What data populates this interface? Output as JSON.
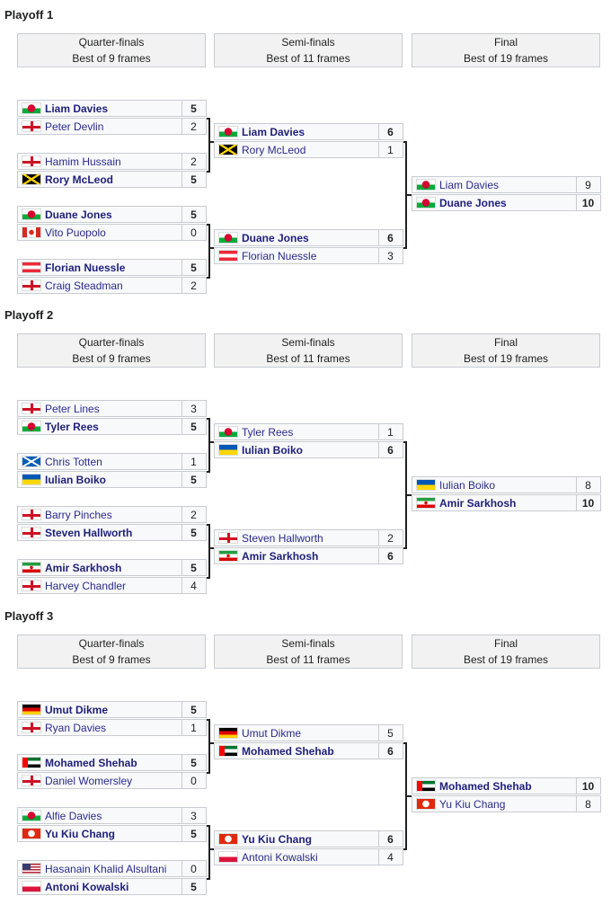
{
  "playoffs": [
    {
      "title": "Playoff 1",
      "rounds": [
        {
          "name": "Quarter-finals",
          "format": "Best of 9 frames"
        },
        {
          "name": "Semi-finals",
          "format": "Best of 11 frames"
        },
        {
          "name": "Final",
          "format": "Best of 19 frames"
        }
      ],
      "quarterfinals": [
        [
          {
            "name": "Liam Davies",
            "flag": "WAL",
            "score": "5",
            "winner": true
          },
          {
            "name": "Peter Devlin",
            "flag": "ENG",
            "score": "2",
            "winner": false
          }
        ],
        [
          {
            "name": "Hamim Hussain",
            "flag": "ENG",
            "score": "2",
            "winner": false
          },
          {
            "name": "Rory McLeod",
            "flag": "JAM",
            "score": "5",
            "winner": true
          }
        ],
        [
          {
            "name": "Duane Jones",
            "flag": "WAL",
            "score": "5",
            "winner": true
          },
          {
            "name": "Vito Puopolo",
            "flag": "CAN",
            "score": "0",
            "winner": false
          }
        ],
        [
          {
            "name": "Florian Nuessle",
            "flag": "AUT",
            "score": "5",
            "winner": true
          },
          {
            "name": "Craig Steadman",
            "flag": "ENG",
            "score": "2",
            "winner": false
          }
        ]
      ],
      "semifinals": [
        [
          {
            "name": "Liam Davies",
            "flag": "WAL",
            "score": "6",
            "winner": true
          },
          {
            "name": "Rory McLeod",
            "flag": "JAM",
            "score": "1",
            "winner": false
          }
        ],
        [
          {
            "name": "Duane Jones",
            "flag": "WAL",
            "score": "6",
            "winner": true
          },
          {
            "name": "Florian Nuessle",
            "flag": "AUT",
            "score": "3",
            "winner": false
          }
        ]
      ],
      "final": [
        [
          {
            "name": "Liam Davies",
            "flag": "WAL",
            "score": "9",
            "winner": false
          },
          {
            "name": "Duane Jones",
            "flag": "WAL",
            "score": "10",
            "winner": true
          }
        ]
      ]
    },
    {
      "title": "Playoff 2",
      "rounds": [
        {
          "name": "Quarter-finals",
          "format": "Best of 9 frames"
        },
        {
          "name": "Semi-finals",
          "format": "Best of 11 frames"
        },
        {
          "name": "Final",
          "format": "Best of 19 frames"
        }
      ],
      "quarterfinals": [
        [
          {
            "name": "Peter Lines",
            "flag": "ENG",
            "score": "3",
            "winner": false
          },
          {
            "name": "Tyler Rees",
            "flag": "WAL",
            "score": "5",
            "winner": true
          }
        ],
        [
          {
            "name": "Chris Totten",
            "flag": "SCO",
            "score": "1",
            "winner": false
          },
          {
            "name": "Iulian Boiko",
            "flag": "UKR",
            "score": "5",
            "winner": true
          }
        ],
        [
          {
            "name": "Barry Pinches",
            "flag": "ENG",
            "score": "2",
            "winner": false
          },
          {
            "name": "Steven Hallworth",
            "flag": "ENG",
            "score": "5",
            "winner": true
          }
        ],
        [
          {
            "name": "Amir Sarkhosh",
            "flag": "IRN",
            "score": "5",
            "winner": true
          },
          {
            "name": "Harvey Chandler",
            "flag": "ENG",
            "score": "4",
            "winner": false
          }
        ]
      ],
      "semifinals": [
        [
          {
            "name": "Tyler Rees",
            "flag": "WAL",
            "score": "1",
            "winner": false
          },
          {
            "name": "Iulian Boiko",
            "flag": "UKR",
            "score": "6",
            "winner": true
          }
        ],
        [
          {
            "name": "Steven Hallworth",
            "flag": "ENG",
            "score": "2",
            "winner": false
          },
          {
            "name": "Amir Sarkhosh",
            "flag": "IRN",
            "score": "6",
            "winner": true
          }
        ]
      ],
      "final": [
        [
          {
            "name": "Iulian Boiko",
            "flag": "UKR",
            "score": "8",
            "winner": false
          },
          {
            "name": "Amir Sarkhosh",
            "flag": "IRN",
            "score": "10",
            "winner": true
          }
        ]
      ]
    },
    {
      "title": "Playoff 3",
      "rounds": [
        {
          "name": "Quarter-finals",
          "format": "Best of 9 frames"
        },
        {
          "name": "Semi-finals",
          "format": "Best of 11 frames"
        },
        {
          "name": "Final",
          "format": "Best of 19 frames"
        }
      ],
      "quarterfinals": [
        [
          {
            "name": "Umut Dikme",
            "flag": "GER",
            "score": "5",
            "winner": true
          },
          {
            "name": "Ryan Davies",
            "flag": "ENG",
            "score": "1",
            "winner": false
          }
        ],
        [
          {
            "name": "Mohamed Shehab",
            "flag": "UAE",
            "score": "5",
            "winner": true
          },
          {
            "name": "Daniel Womersley",
            "flag": "ENG",
            "score": "0",
            "winner": false
          }
        ],
        [
          {
            "name": "Alfie Davies",
            "flag": "WAL",
            "score": "3",
            "winner": false
          },
          {
            "name": "Yu Kiu Chang",
            "flag": "HKG",
            "score": "5",
            "winner": true
          }
        ],
        [
          {
            "name": "Hasanain Khalid Alsultani",
            "flag": "USA",
            "score": "0",
            "winner": false
          },
          {
            "name": "Antoni Kowalski",
            "flag": "POL",
            "score": "5",
            "winner": true
          }
        ]
      ],
      "semifinals": [
        [
          {
            "name": "Umut Dikme",
            "flag": "GER",
            "score": "5",
            "winner": false
          },
          {
            "name": "Mohamed Shehab",
            "flag": "UAE",
            "score": "6",
            "winner": true
          }
        ],
        [
          {
            "name": "Yu Kiu Chang",
            "flag": "HKG",
            "score": "6",
            "winner": true
          },
          {
            "name": "Antoni Kowalski",
            "flag": "POL",
            "score": "4",
            "winner": false
          }
        ]
      ],
      "final": [
        [
          {
            "name": "Mohamed Shehab",
            "flag": "UAE",
            "score": "10",
            "winner": true
          },
          {
            "name": "Yu Kiu Chang",
            "flag": "HKG",
            "score": "8",
            "winner": false
          }
        ]
      ]
    }
  ]
}
